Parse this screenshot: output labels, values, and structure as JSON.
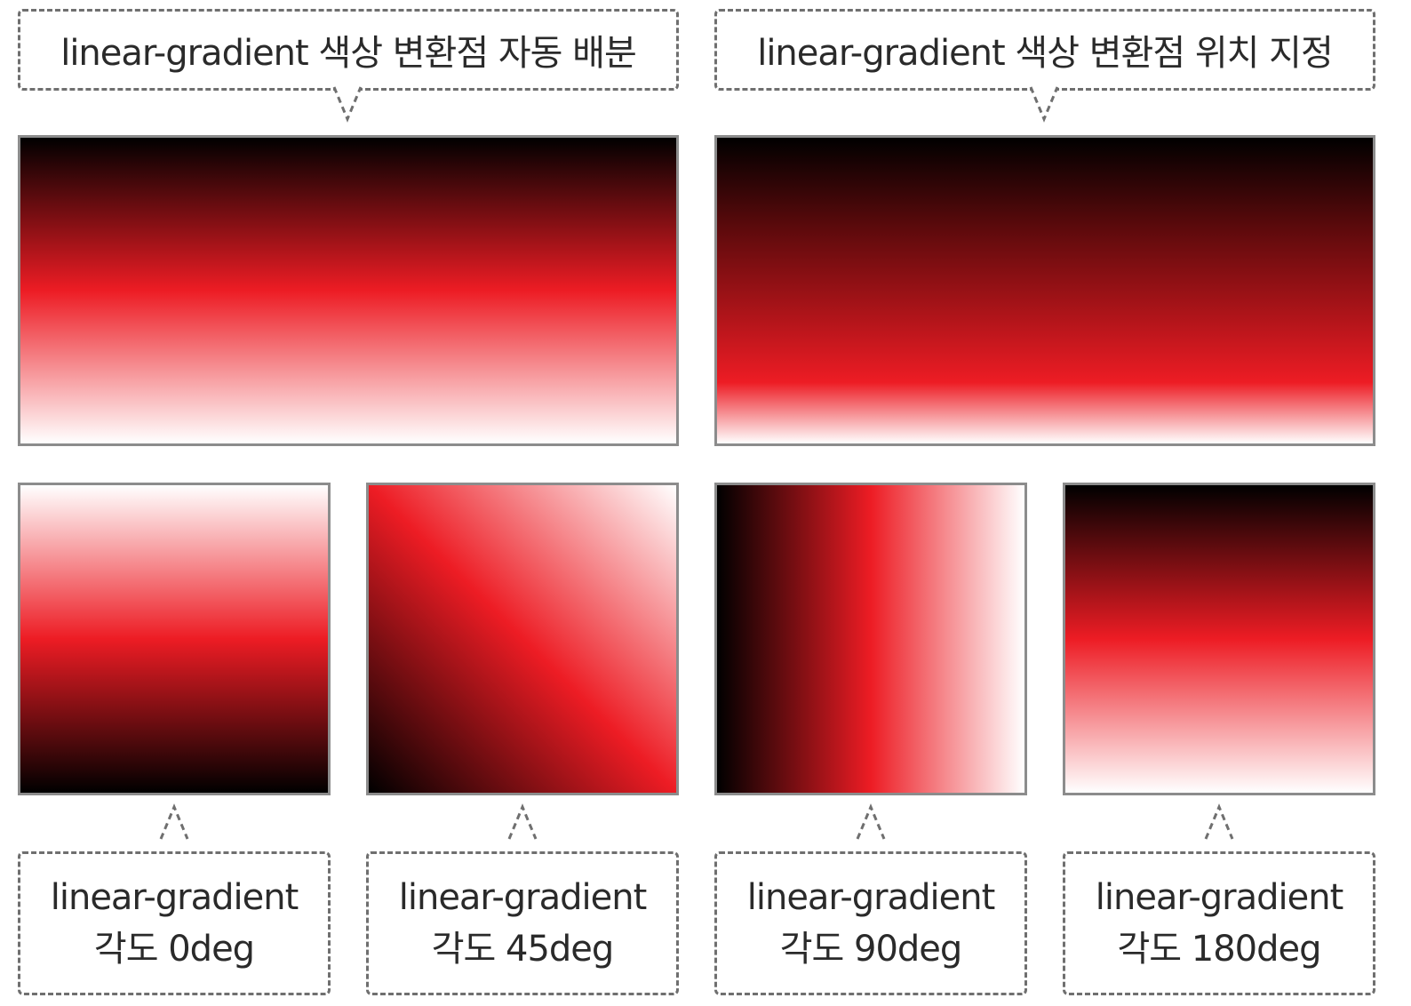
{
  "top_callouts": [
    {
      "text": "linear-gradient 색상 변환점 자동 배분"
    },
    {
      "text": "linear-gradient 색상 변환점 위치 지정"
    }
  ],
  "bottom_callouts": [
    {
      "line1": "linear-gradient",
      "line2": "각도 0deg"
    },
    {
      "line1": "linear-gradient",
      "line2": "각도 45deg"
    },
    {
      "line1": "linear-gradient",
      "line2": "각도 90deg"
    },
    {
      "line1": "linear-gradient",
      "line2": "각도 180deg"
    }
  ],
  "gradient_colors": [
    "#000000",
    "#ed1c24",
    "#ffffff"
  ],
  "angles_deg": [
    0,
    45,
    90,
    180
  ]
}
